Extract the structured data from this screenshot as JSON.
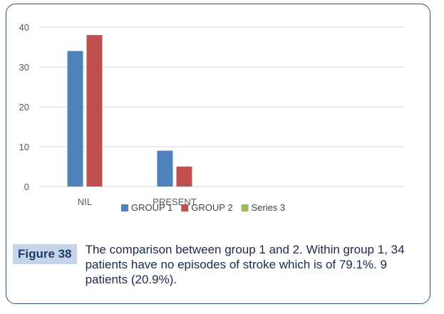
{
  "chart_data": {
    "type": "bar",
    "categories": [
      "NIL",
      "PRESENT"
    ],
    "series": [
      {
        "name": "GROUP 1",
        "values": [
          34,
          9
        ],
        "color": "#4f81bd"
      },
      {
        "name": "GROUP 2",
        "values": [
          38,
          5
        ],
        "color": "#c0504d"
      },
      {
        "name": "Series 3",
        "values": [
          null,
          null
        ],
        "color": "#9bbb59"
      }
    ],
    "ylim": [
      0,
      40
    ],
    "yticks": [
      0,
      10,
      20,
      30,
      40
    ],
    "grid": true,
    "legend": "bottom"
  },
  "caption": {
    "label": "Figure 38",
    "text": "The comparison between group 1 and 2. Within group 1, 34 patients have no episodes of stroke which is of 79.1%. 9 patients (20.9%)."
  }
}
